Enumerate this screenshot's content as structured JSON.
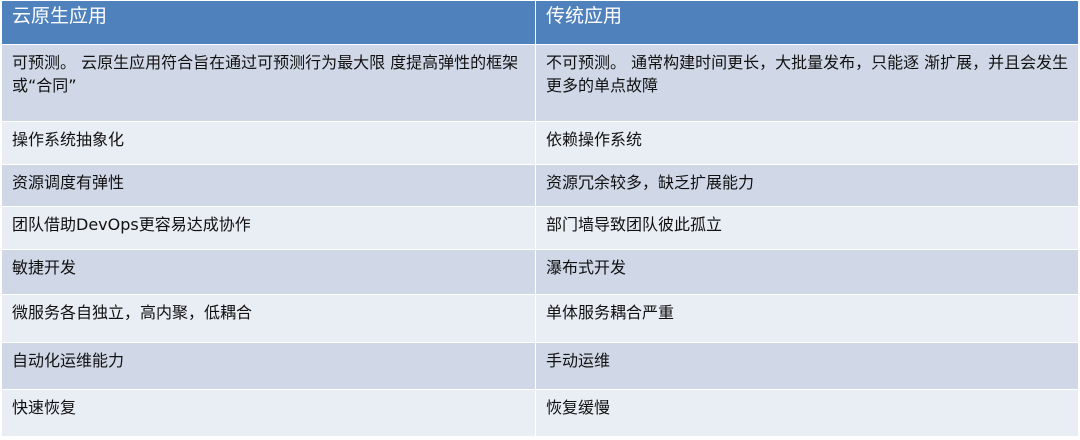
{
  "table": {
    "header": [
      "云原生应用",
      "传统应用"
    ],
    "rows": [
      [
        "可预测。 云原生应用符合旨在通过可预测行为最大限 度提高弹性的框架或“合同”",
        "不可预测。 通常构建时间更长，大批量发布，只能逐 渐扩展，并且会发生更多的单点故障"
      ],
      [
        "操作系统抽象化",
        "依赖操作系统"
      ],
      [
        "资源调度有弹性",
        "资源冗余较多，缺乏扩展能力"
      ],
      [
        "团队借助DevOps更容易达成协作",
        "部门墙导致团队彼此孤立"
      ],
      [
        "敏捷开发",
        "瀑布式开发"
      ],
      [
        "微服务各自独立，高内聚，低耦合",
        "单体服务耦合严重"
      ],
      [
        "自动化运维能力",
        "手动运维"
      ],
      [
        "快速恢复",
        "恢复缓慢"
      ]
    ]
  }
}
